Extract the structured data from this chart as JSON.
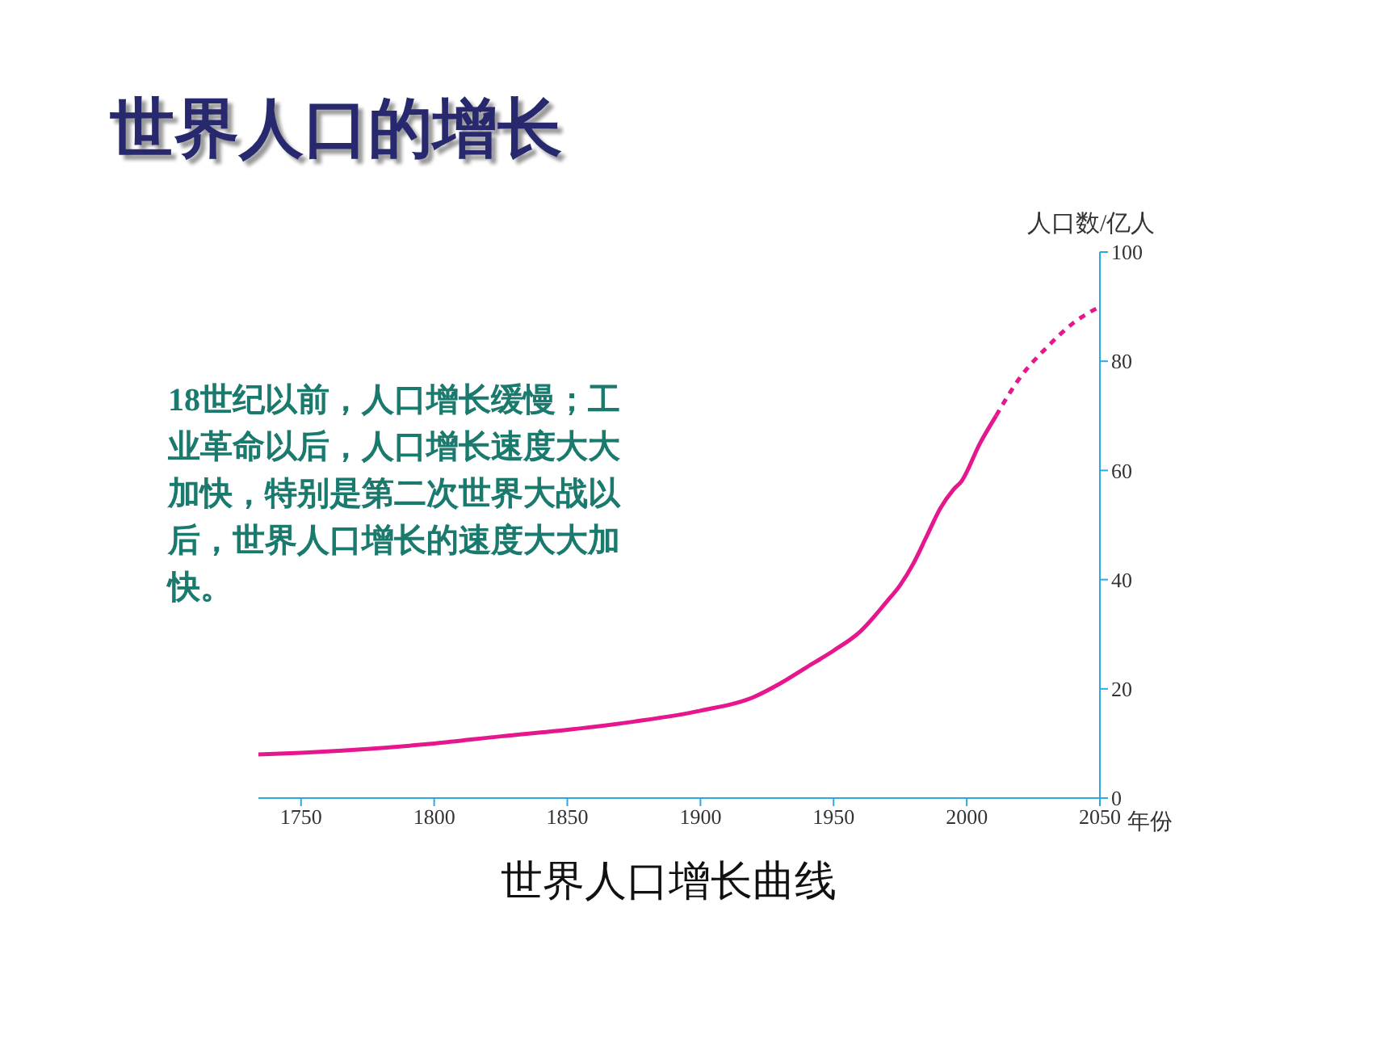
{
  "chart_data": {
    "type": "line",
    "title": "世界人口的增长",
    "xlabel": "年份",
    "ylabel": "人口数/亿人",
    "xlim": [
      1734,
      2050
    ],
    "xticks": [
      1750,
      1800,
      1850,
      1900,
      1950,
      2000,
      2050
    ],
    "ylim": [
      0,
      100
    ],
    "yticks": [
      0,
      20,
      40,
      60,
      80,
      100
    ],
    "grid": false,
    "legend": false,
    "marker": "none",
    "series": [
      {
        "color": "#e6168c",
        "line_style": "solid",
        "x": [
          1734,
          1750,
          1775,
          1800,
          1825,
          1850,
          1875,
          1900,
          1920,
          1930,
          1940,
          1950,
          1960,
          1970,
          1975,
          1980,
          1985,
          1990,
          1995,
          1998,
          2005,
          2011
        ],
        "values": [
          8,
          8.3,
          9,
          10,
          11.3,
          12.5,
          14,
          16,
          18.5,
          21,
          24,
          27,
          30.5,
          36,
          39,
          43,
          48,
          53,
          56.5,
          58,
          65,
          70
        ]
      },
      {
        "color": "#e6168c",
        "line_style": "dashed",
        "x": [
          2011,
          2020,
          2030,
          2040,
          2050
        ],
        "values": [
          70,
          77,
          82.5,
          87,
          90
        ]
      }
    ],
    "annotations": [
      "18世纪以前，人口增长缓慢；工业革命以后，人口增长速度大大加快，特别是第二次世界大战以后，世界人口增长的速度大大加快。",
      "世界人口增长曲线"
    ]
  }
}
